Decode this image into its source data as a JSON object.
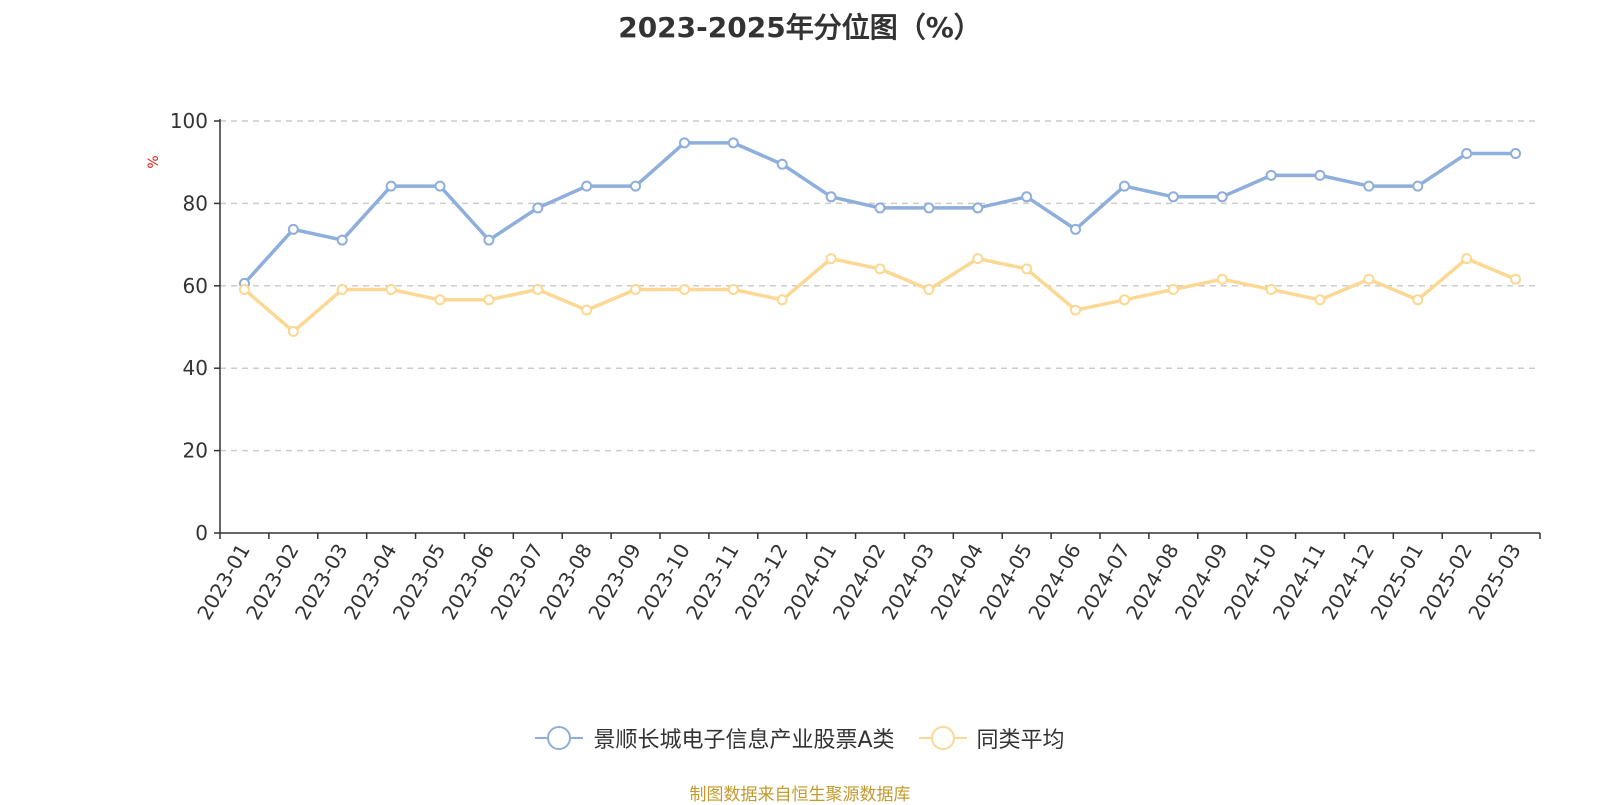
{
  "chart_data": {
    "type": "line",
    "title": "2023-2025年分位图（%）",
    "ylabel": "%",
    "xlabel": "",
    "ylim": [
      0,
      100
    ],
    "yticks": [
      0,
      20,
      40,
      60,
      80,
      100
    ],
    "grid": true,
    "legend_position": "bottom",
    "categories": [
      "2023-01",
      "2023-02",
      "2023-03",
      "2023-04",
      "2023-05",
      "2023-06",
      "2023-07",
      "2023-08",
      "2023-09",
      "2023-10",
      "2023-11",
      "2023-12",
      "2024-01",
      "2024-02",
      "2024-03",
      "2024-04",
      "2024-05",
      "2024-06",
      "2024-07",
      "2024-08",
      "2024-09",
      "2024-10",
      "2024-11",
      "2024-12",
      "2025-01",
      "2025-02",
      "2025-03"
    ],
    "series": [
      {
        "name": "景顺长城电子信息产业股票A类",
        "color": "#8eaedb",
        "values": [
          60.6,
          73.7,
          71.1,
          84.2,
          84.2,
          71.1,
          78.9,
          84.2,
          84.2,
          94.7,
          94.7,
          89.5,
          81.6,
          78.9,
          78.9,
          78.9,
          81.6,
          73.7,
          84.2,
          81.6,
          81.6,
          86.8,
          86.8,
          84.2,
          84.2,
          92.1,
          92.1
        ]
      },
      {
        "name": "同类平均",
        "color": "#fbd893",
        "values": [
          59.1,
          48.9,
          59.1,
          59.1,
          56.6,
          56.6,
          59.1,
          54.1,
          59.1,
          59.1,
          59.1,
          56.6,
          66.6,
          64.1,
          59.1,
          66.6,
          64.1,
          54.1,
          56.6,
          59.1,
          61.6,
          59.1,
          56.6,
          61.6,
          56.6,
          66.6,
          61.6
        ]
      }
    ]
  },
  "source_text": "制图数据来自恒生聚源数据库",
  "colors": {
    "source_text": "#c49a2e",
    "ylabel": "#e02020",
    "axis": "#333333",
    "grid": "#cccccc"
  }
}
